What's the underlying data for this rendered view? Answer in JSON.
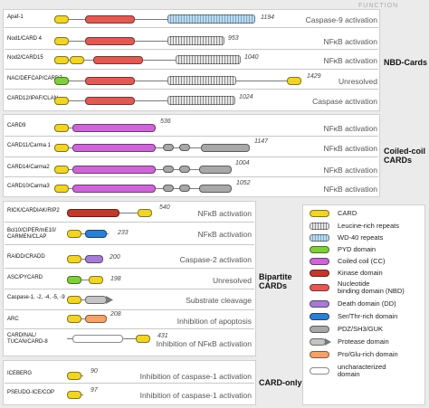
{
  "header": {
    "function_label": "FUNCTION"
  },
  "groups": {
    "nbd": {
      "label": "NBD-Cards",
      "proteins": [
        {
          "name": "Apaf-1",
          "length": "1194",
          "function": "Caspase-9 activation"
        },
        {
          "name": "Nod1/CARD 4",
          "length": "953",
          "function": "NFκB activation"
        },
        {
          "name": "Nod2/CARD15",
          "length": "1040",
          "function": "NFκB activation"
        },
        {
          "name": "NAC/DEFCAP/CARD7",
          "length": "1429",
          "function": "Unresolved"
        },
        {
          "name": "CARD12/IPAF/CLAN",
          "length": "1024",
          "function": "Caspase activation"
        }
      ]
    },
    "cc": {
      "label_line1": "Coiled-coil",
      "label_line2": "CARDs",
      "proteins": [
        {
          "name": "CARD9",
          "length": "536",
          "function": "NFκB activation"
        },
        {
          "name": "CARD11/Carma 1",
          "length": "1147",
          "function": "NFκB activation"
        },
        {
          "name": "CARD14/Carma2",
          "length": "1004",
          "function": "NFκB activation"
        },
        {
          "name": "CARD10/Carma3",
          "length": "1052",
          "function": "NFκB activation"
        }
      ]
    },
    "bipartite": {
      "label_line1": "Bipartite",
      "label_line2": "CARDs",
      "proteins": [
        {
          "name": "RICK/CARDIAK/RIP2",
          "length": "540",
          "function": "NFκB activation"
        },
        {
          "name_line1": "Bcl10/CIPER/mE10/",
          "name_line2": "CARMEN/CLAP",
          "length": "233",
          "function": "NFκB activation"
        },
        {
          "name": "RAIDD/CRADD",
          "length": "200",
          "function": "Caspase-2 activation"
        },
        {
          "name": "ASC/PYCARD",
          "length": "198",
          "function": "Unresolved"
        },
        {
          "name": "Caspase-1, -2, -4, -5, -9",
          "length": "",
          "function": "Substrate cleavage"
        },
        {
          "name": "ARC",
          "length": "208",
          "function": "Inhibition of apoptosis"
        },
        {
          "name_line1": "CARDINAL/",
          "name_line2": "TUCAN/CARD-8",
          "length": "431",
          "function": "Inhibition of NFκB activation"
        }
      ]
    },
    "cardonly": {
      "label": "CARD-only",
      "proteins": [
        {
          "name": "ICEBERG",
          "length": "90",
          "function": "Inhibition of caspase-1 activation"
        },
        {
          "name": "PSEUDO-ICE/COP",
          "length": "97",
          "function": "Inhibition of caspase-1 activation"
        }
      ]
    }
  },
  "legend": [
    {
      "label": "CARD",
      "color": "#f0d528"
    },
    {
      "label": "Leucine-rich repeats",
      "color": "#9a9a9a"
    },
    {
      "label": "WD-40 repeats",
      "color": "#8fb9d8"
    },
    {
      "label": "PYD domain",
      "color": "#7fcf3a"
    },
    {
      "label": "Coiled coil (CC)",
      "color": "#cc66d6"
    },
    {
      "label": "Kinase domain",
      "color": "#c0392b"
    },
    {
      "label_line1": "Nucleotide",
      "label_line2": "binding domain (NBD)",
      "color": "#e05a54"
    },
    {
      "label": "Death domain (DD)",
      "color": "#a57cd2"
    },
    {
      "label": "Ser/Thr-rich domain",
      "color": "#2d7fd3"
    },
    {
      "label": "PDZ/SH3/GUK",
      "color": "#a8a8a8"
    },
    {
      "label": "Protease domain",
      "color": "#c4c4c4"
    },
    {
      "label": "Pro/Glu-rich domain",
      "color": "#f2a26a"
    },
    {
      "label_line1": "uncharacterized",
      "label_line2": "domain",
      "color": "#ffffff"
    }
  ]
}
